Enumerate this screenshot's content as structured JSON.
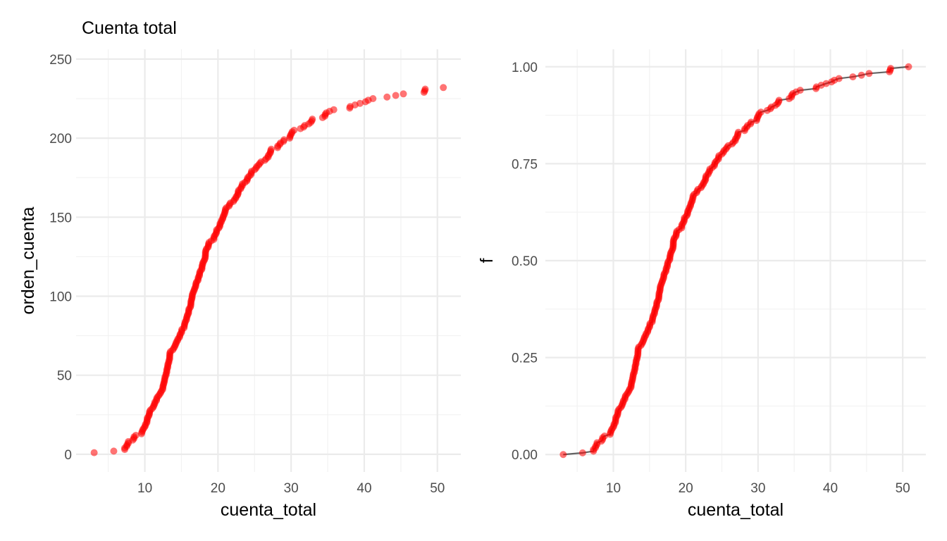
{
  "colors": {
    "point": "#ff0000",
    "line": "#000000",
    "grid_major": "#ebebeb",
    "grid_minor": "#f2f2f2",
    "tick_text": "#4d4d4d"
  },
  "chart_data": [
    {
      "type": "scatter",
      "title": "Cuenta total",
      "xlabel": "cuenta_total",
      "ylabel": "orden_cuenta",
      "xlim": [
        0.6,
        53.2
      ],
      "ylim": [
        -11.2,
        256.2
      ],
      "x_ticks": [
        10,
        20,
        30,
        40,
        50
      ],
      "x_tick_labels": [
        "10",
        "20",
        "30",
        "40",
        "50"
      ],
      "y_ticks": [
        0,
        50,
        100,
        150,
        200,
        250
      ],
      "y_tick_labels": [
        "0",
        "50",
        "100",
        "150",
        "200",
        "250"
      ],
      "grid": true,
      "series": [
        {
          "y_from": 1,
          "x": [
            3.07,
            5.75,
            7.25,
            7.25,
            7.51,
            7.56,
            7.74,
            7.74,
            8.35,
            8.51,
            8.52,
            8.77,
            9.55,
            9.6,
            9.68,
            9.78,
            9.94,
            10.07,
            10.09,
            10.27,
            10.29,
            10.33,
            10.34,
            10.51,
            10.59,
            10.63,
            10.65,
            10.77,
            11.02,
            11.17,
            11.24,
            11.35,
            11.38,
            11.59,
            11.61,
            11.69,
            11.87,
            12.03,
            12.16,
            12.26,
            12.43,
            12.46,
            12.48,
            12.54,
            12.6,
            12.66,
            12.69,
            12.74,
            12.76,
            12.9,
            12.9,
            13.0,
            13.0,
            13.03,
            13.13,
            13.13,
            13.16,
            13.27,
            13.28,
            13.37,
            13.39,
            13.39,
            13.42,
            13.42,
            13.51,
            13.81,
            13.94,
            14.07,
            14.15,
            14.26,
            14.31,
            14.48,
            14.52,
            14.73,
            14.78,
            14.83,
            15.01,
            15.04,
            15.06,
            15.36,
            15.38,
            15.42,
            15.48,
            15.53,
            15.69,
            15.69,
            15.77,
            15.81,
            15.95,
            15.98,
            16.0,
            16.04,
            16.21,
            16.27,
            16.29,
            16.31,
            16.32,
            16.4,
            16.45,
            16.47,
            16.49,
            16.58,
            16.66,
            16.76,
            16.82,
            16.93,
            16.97,
            16.99,
            17.07,
            17.26,
            17.29,
            17.31,
            17.46,
            17.47,
            17.51,
            17.59,
            17.78,
            17.81,
            17.82,
            17.89,
            17.92,
            18.04,
            18.15,
            18.24,
            18.26,
            18.28,
            18.29,
            18.29,
            18.35,
            18.43,
            18.64,
            18.69,
            18.71,
            18.78,
            19.08,
            19.44,
            19.44,
            19.49,
            19.65,
            19.77,
            19.81,
            19.82,
            20.08,
            20.23,
            20.27,
            20.29,
            20.45,
            20.49,
            20.65,
            20.69,
            20.76,
            20.9,
            20.92,
            21.01,
            21.01,
            21.16,
            21.5,
            21.58,
            21.7,
            22.12,
            22.23,
            22.42,
            22.49,
            22.67,
            22.75,
            22.76,
            22.82,
            23.1,
            23.17,
            23.33,
            23.33,
            23.68,
            23.95,
            24.01,
            24.06,
            24.27,
            24.52,
            24.55,
            24.59,
            25.0,
            25.21,
            25.29,
            25.56,
            25.71,
            25.89,
            26.41,
            26.59,
            26.86,
            26.88,
            27.05,
            27.18,
            27.2,
            27.28,
            28.15,
            28.17,
            28.44,
            28.55,
            28.97,
            29.03,
            29.8,
            29.85,
            29.93,
            30.06,
            30.14,
            30.4,
            31.27,
            31.71,
            31.85,
            32.4,
            32.68,
            32.83,
            32.9,
            34.3,
            34.63,
            34.65,
            34.81,
            35.26,
            35.83,
            38.01,
            38.07,
            38.73,
            39.42,
            40.17,
            40.55,
            41.19,
            43.11,
            44.3,
            45.35,
            48.17,
            48.27,
            48.33,
            50.81
          ]
        }
      ]
    },
    {
      "type": "line",
      "title": "",
      "xlabel": "cuenta_total",
      "ylabel": "f",
      "xlim": [
        0.6,
        53.2
      ],
      "ylim": [
        -0.045,
        1.045
      ],
      "x_ticks": [
        10,
        20,
        30,
        40,
        50
      ],
      "x_tick_labels": [
        "10",
        "20",
        "30",
        "40",
        "50"
      ],
      "y_ticks": [
        0,
        0.25,
        0.5,
        0.75,
        1.0
      ],
      "y_tick_labels": [
        "0.00",
        "0.25",
        "0.50",
        "0.75",
        "1.00"
      ],
      "grid": true,
      "series": [
        {
          "x_ref": 0,
          "y_from": 0,
          "y_to": 1,
          "points": true,
          "line": true
        }
      ]
    }
  ]
}
